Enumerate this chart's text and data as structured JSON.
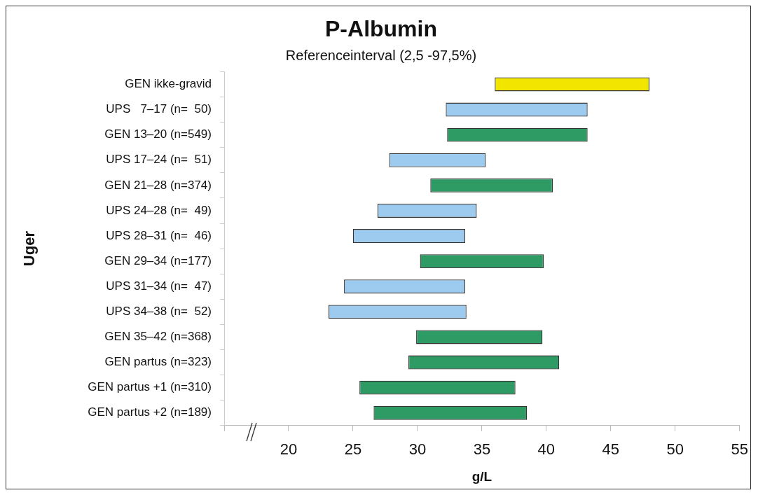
{
  "chart_data": {
    "type": "bar",
    "orientation": "horizontal",
    "title": "P-Albumin",
    "subtitle": "Referenceinterval (2,5 -97,5%)",
    "xlabel": "g/L",
    "ylabel": "Uger",
    "categories": [
      "GEN ikke-gravid",
      "UPS   7–17 (n=  50)",
      "GEN 13–20 (n=549)",
      "UPS 17–24 (n=  51)",
      "GEN 21–28 (n=374)",
      "UPS 24–28 (n=  49)",
      "UPS 28–31 (n=  46)",
      "GEN 29–34 (n=177)",
      "UPS 31–34 (n=  47)",
      "UPS 34–38 (n=  52)",
      "GEN 35–42 (n=368)",
      "GEN partus (n=323)",
      "GEN partus +1 (n=310)",
      "GEN partus +2 (n=189)"
    ],
    "base": [
      36.0,
      32.2,
      32.3,
      27.8,
      31.0,
      26.9,
      25.0,
      30.2,
      24.3,
      23.1,
      29.9,
      29.3,
      25.5,
      26.6
    ],
    "values": [
      12.0,
      11.0,
      10.9,
      7.5,
      9.5,
      7.7,
      8.7,
      9.6,
      9.4,
      10.7,
      9.8,
      11.7,
      12.1,
      11.9
    ],
    "colors": [
      "#f2e600",
      "#9ccbef",
      "#2e9a64",
      "#9ccbef",
      "#2e9a64",
      "#9ccbef",
      "#9ccbef",
      "#2e9a64",
      "#9ccbef",
      "#9ccbef",
      "#2e9a64",
      "#2e9a64",
      "#2e9a64",
      "#2e9a64"
    ],
    "xlim": [
      15,
      55
    ],
    "xticks": [
      {
        "value": 15,
        "label": null
      },
      20,
      25,
      30,
      35,
      40,
      45,
      50,
      55
    ],
    "grid": false,
    "legend": false
  }
}
